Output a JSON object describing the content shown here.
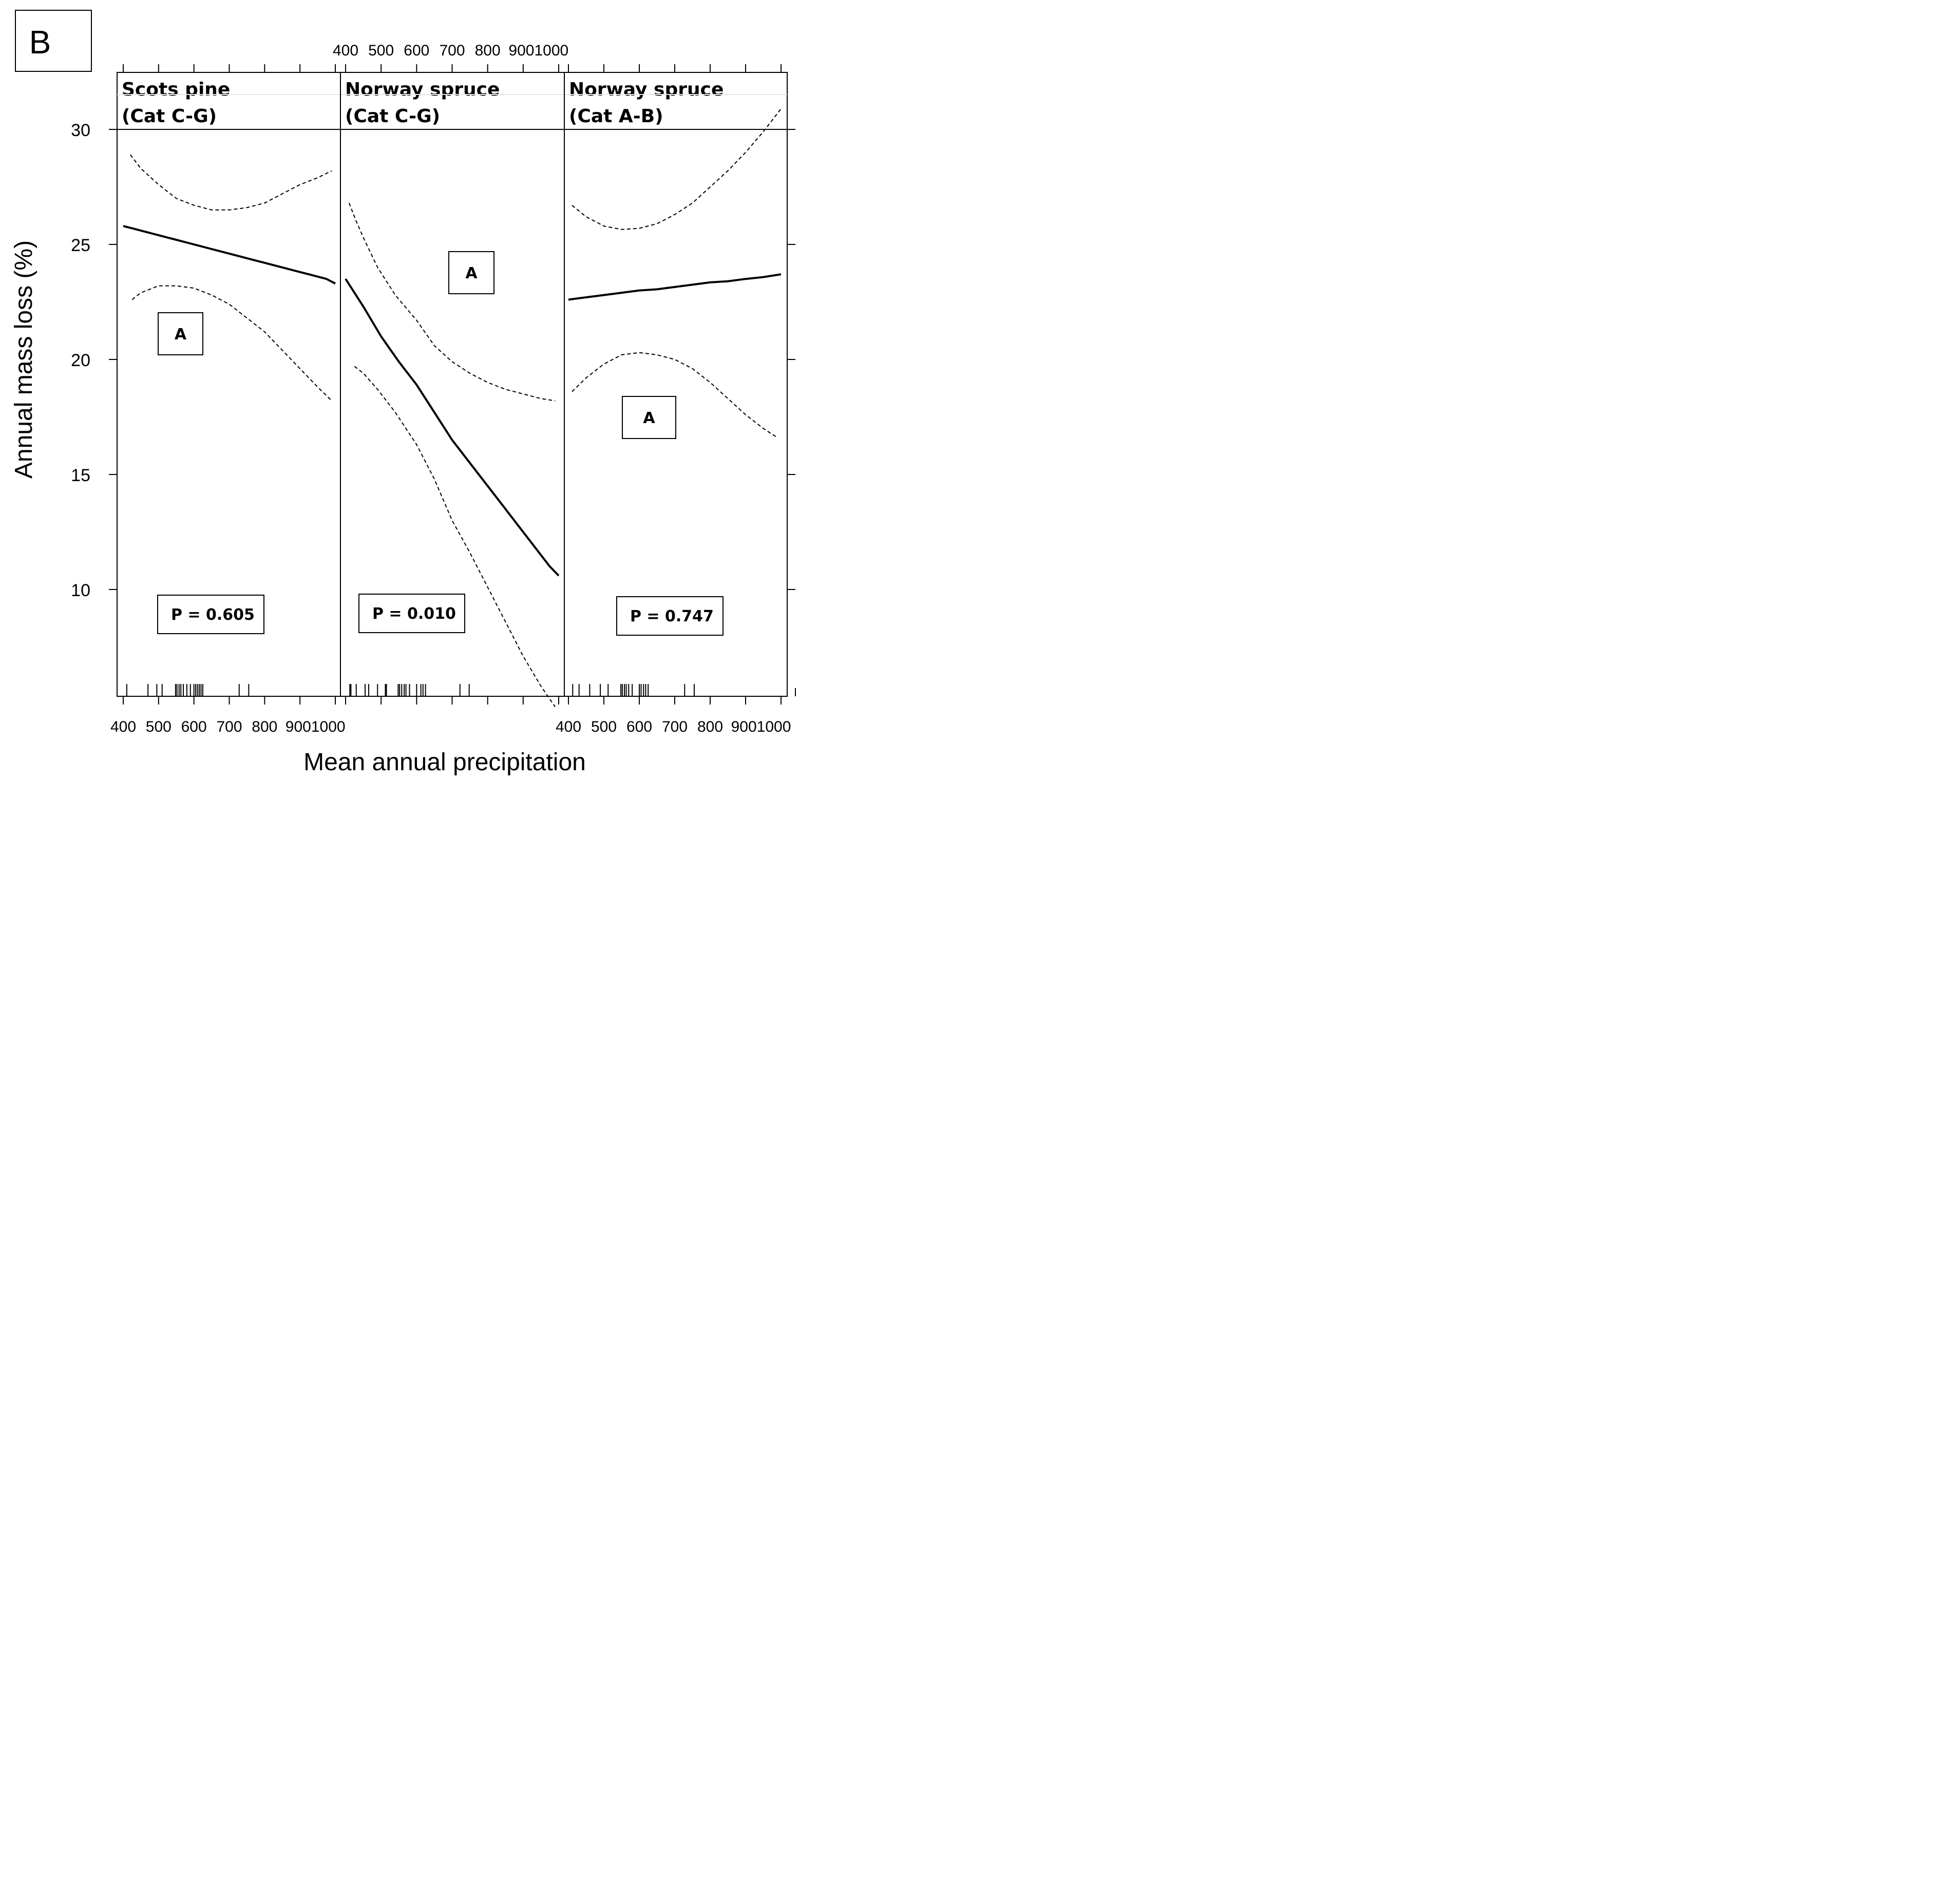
{
  "chart_data": {
    "type": "line",
    "panel_letter": "B",
    "ylabel": "Annual mass loss (%)",
    "xlabel": "Mean annual precipitation",
    "ylim": [
      5.5,
      30
    ],
    "xlim": [
      400,
      1000
    ],
    "y_ticks": [
      10,
      15,
      20,
      25,
      30
    ],
    "x_tick_values": [
      400,
      500,
      600,
      700,
      800,
      900,
      1000
    ],
    "x_tick_labels": [
      "400",
      "500",
      "600",
      "700",
      "800",
      "900",
      "1000"
    ],
    "x_tick_label_strip": [
      "400",
      "500",
      "600",
      "700",
      "800",
      "9001000"
    ],
    "panels": [
      {
        "name": "scots-pine-cat-c-g",
        "title_line1": "Scots pine",
        "title_line2": "(Cat C-G)",
        "group_letter": "A",
        "p_value": "P = 0.605",
        "fit": {
          "x": [
            400,
            425,
            450,
            475,
            500,
            525,
            550,
            575,
            600,
            625,
            650,
            675,
            700,
            725,
            750,
            775,
            800,
            825,
            850,
            875,
            900,
            925,
            950,
            975,
            1000
          ],
          "y": [
            25.8,
            25.7,
            25.6,
            25.5,
            25.4,
            25.3,
            25.2,
            25.1,
            25.0,
            24.9,
            24.8,
            24.7,
            24.6,
            24.5,
            24.4,
            24.3,
            24.2,
            24.1,
            24.0,
            23.9,
            23.8,
            23.7,
            23.6,
            23.5,
            23.3
          ]
        },
        "upper": {
          "x": [
            420,
            450,
            500,
            550,
            600,
            650,
            700,
            750,
            800,
            850,
            900,
            950,
            990
          ],
          "y": [
            28.9,
            28.3,
            27.6,
            27.0,
            26.7,
            26.5,
            26.5,
            26.6,
            26.8,
            27.2,
            27.6,
            27.9,
            28.2
          ]
        },
        "lower": {
          "x": [
            425,
            450,
            500,
            550,
            600,
            650,
            700,
            750,
            800,
            850,
            900,
            950,
            990
          ],
          "y": [
            22.6,
            22.9,
            23.2,
            23.2,
            23.1,
            22.8,
            22.4,
            21.8,
            21.2,
            20.4,
            19.6,
            18.8,
            18.2
          ]
        },
        "rug": [
          410,
          470,
          495,
          510,
          548,
          552,
          558,
          563,
          570,
          580,
          590,
          600,
          605,
          610,
          615,
          620,
          625,
          728,
          755
        ]
      },
      {
        "name": "norway-spruce-cat-c-g",
        "title_line1": "Norway spruce",
        "title_line2": "(Cat C-G)",
        "group_letter": "A",
        "p_value": "P = 0.010",
        "fit": {
          "x": [
            400,
            450,
            500,
            550,
            600,
            650,
            700,
            750,
            800,
            850,
            900,
            950,
            975,
            1000
          ],
          "y": [
            23.5,
            22.3,
            21.0,
            19.9,
            18.9,
            17.7,
            16.5,
            15.5,
            14.5,
            13.5,
            12.5,
            11.5,
            11.0,
            10.6
          ]
        },
        "upper": {
          "x": [
            410,
            430,
            450,
            490,
            540,
            600,
            650,
            700,
            750,
            800,
            850,
            900,
            950,
            990
          ],
          "y": [
            26.8,
            26.0,
            25.3,
            24.0,
            22.8,
            21.7,
            20.6,
            19.9,
            19.4,
            19.0,
            18.7,
            18.5,
            18.3,
            18.2
          ]
        },
        "lower": {
          "x": [
            425,
            450,
            490,
            540,
            600,
            650,
            700,
            750,
            800,
            850,
            900,
            950,
            990
          ],
          "y": [
            19.7,
            19.4,
            18.7,
            17.7,
            16.3,
            14.8,
            13.0,
            11.6,
            10.1,
            8.6,
            7.1,
            5.8,
            4.9
          ]
        },
        "rug": [
          412,
          415,
          430,
          455,
          465,
          490,
          512,
          515,
          548,
          552,
          558,
          565,
          570,
          580,
          600,
          612,
          618,
          625,
          722,
          748
        ]
      },
      {
        "name": "norway-spruce-cat-a-b",
        "title_line1": "Norway spruce",
        "title_line2": "(Cat A-B)",
        "group_letter": "A",
        "p_value": "P = 0.747",
        "fit": {
          "x": [
            400,
            450,
            500,
            550,
            600,
            650,
            700,
            750,
            800,
            850,
            900,
            950,
            1000
          ],
          "y": [
            22.6,
            22.7,
            22.8,
            22.9,
            23.0,
            23.05,
            23.15,
            23.25,
            23.35,
            23.4,
            23.5,
            23.58,
            23.7
          ]
        },
        "upper": {
          "x": [
            410,
            450,
            500,
            550,
            600,
            650,
            700,
            750,
            800,
            850,
            900,
            950,
            1000
          ],
          "y": [
            26.7,
            26.2,
            25.8,
            25.65,
            25.7,
            25.9,
            26.3,
            26.8,
            27.5,
            28.2,
            29.0,
            29.9,
            30.9
          ]
        },
        "lower": {
          "x": [
            410,
            450,
            500,
            550,
            600,
            650,
            700,
            750,
            800,
            850,
            900,
            950,
            990
          ],
          "y": [
            18.6,
            19.2,
            19.8,
            20.2,
            20.3,
            20.2,
            20.0,
            19.6,
            19.0,
            18.3,
            17.6,
            17.0,
            16.6
          ]
        },
        "rug": [
          412,
          430,
          460,
          490,
          512,
          548,
          552,
          558,
          563,
          570,
          580,
          600,
          605,
          612,
          618,
          625,
          728,
          755
        ]
      }
    ]
  }
}
